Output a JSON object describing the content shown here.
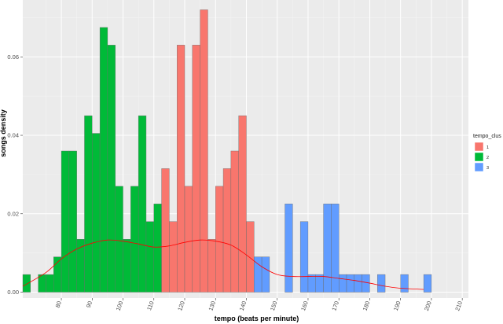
{
  "chart_data": {
    "type": "bar",
    "xlabel": "tempo (beats per minute)",
    "ylabel": "songs density",
    "xlim": [
      67.5,
      212
    ],
    "ylim": [
      -0.0015,
      0.0745
    ],
    "x_ticks": [
      80,
      90,
      100,
      110,
      120,
      130,
      140,
      150,
      160,
      170,
      180,
      190,
      200,
      210
    ],
    "y_ticks": [
      0.0,
      0.02,
      0.04,
      0.06
    ],
    "y_tick_labels": [
      "0.00",
      "0.02",
      "0.04",
      "0.06"
    ],
    "bin_width": 2.5,
    "legend": {
      "title": "tempo_clus",
      "position": "right",
      "items": [
        {
          "label": "1",
          "color": "#F8766D"
        },
        {
          "label": "2",
          "color": "#00BA38"
        },
        {
          "label": "3",
          "color": "#619CFF"
        }
      ]
    },
    "series": [
      {
        "name": "2",
        "color": "#00BA38",
        "bins": [
          [
            67.5,
            0.0045
          ],
          [
            72.5,
            0.0045
          ],
          [
            75.0,
            0.0045
          ],
          [
            77.5,
            0.009
          ],
          [
            80.0,
            0.036
          ],
          [
            82.5,
            0.036
          ],
          [
            85.0,
            0.0135
          ],
          [
            87.5,
            0.045
          ],
          [
            90.0,
            0.0405
          ],
          [
            92.5,
            0.0675
          ],
          [
            95.0,
            0.063
          ],
          [
            97.5,
            0.027
          ],
          [
            100.0,
            0.0135
          ],
          [
            102.5,
            0.027
          ],
          [
            105.0,
            0.045
          ],
          [
            107.5,
            0.018
          ],
          [
            110.0,
            0.0225
          ]
        ]
      },
      {
        "name": "1",
        "color": "#F8766D",
        "bins": [
          [
            112.5,
            0.0315
          ],
          [
            115.0,
            0.018
          ],
          [
            117.5,
            0.063
          ],
          [
            120.0,
            0.027
          ],
          [
            122.5,
            0.063
          ],
          [
            125.0,
            0.072
          ],
          [
            127.5,
            0.0135
          ],
          [
            130.0,
            0.027
          ],
          [
            132.5,
            0.0315
          ],
          [
            135.0,
            0.036
          ],
          [
            137.5,
            0.045
          ],
          [
            140.0,
            0.018
          ]
        ]
      },
      {
        "name": "3",
        "color": "#619CFF",
        "bins": [
          [
            142.5,
            0.009
          ],
          [
            145.0,
            0.009
          ],
          [
            152.5,
            0.0225
          ],
          [
            157.5,
            0.018
          ],
          [
            160.0,
            0.0045
          ],
          [
            162.5,
            0.0045
          ],
          [
            165.0,
            0.0225
          ],
          [
            167.5,
            0.0225
          ],
          [
            170.0,
            0.0045
          ],
          [
            172.5,
            0.0045
          ],
          [
            175.0,
            0.0045
          ],
          [
            177.5,
            0.0045
          ],
          [
            182.5,
            0.0045
          ],
          [
            190.0,
            0.0045
          ],
          [
            197.5,
            0.0045
          ]
        ]
      }
    ],
    "density_curve": {
      "color": "#FF0000",
      "points": [
        [
          67.5,
          0.0015
        ],
        [
          75,
          0.005
        ],
        [
          80,
          0.0085
        ],
        [
          85,
          0.011
        ],
        [
          90,
          0.0125
        ],
        [
          95,
          0.0133
        ],
        [
          100,
          0.013
        ],
        [
          105,
          0.0123
        ],
        [
          110,
          0.0115
        ],
        [
          115,
          0.0118
        ],
        [
          120,
          0.0127
        ],
        [
          125,
          0.0133
        ],
        [
          130,
          0.013
        ],
        [
          135,
          0.012
        ],
        [
          140,
          0.0095
        ],
        [
          145,
          0.0065
        ],
        [
          150,
          0.0045
        ],
        [
          155,
          0.004
        ],
        [
          160,
          0.004
        ],
        [
          165,
          0.004
        ],
        [
          170,
          0.0035
        ],
        [
          175,
          0.003
        ],
        [
          180,
          0.0023
        ],
        [
          185,
          0.0015
        ],
        [
          190,
          0.001
        ],
        [
          197.5,
          0.0007
        ]
      ]
    }
  }
}
